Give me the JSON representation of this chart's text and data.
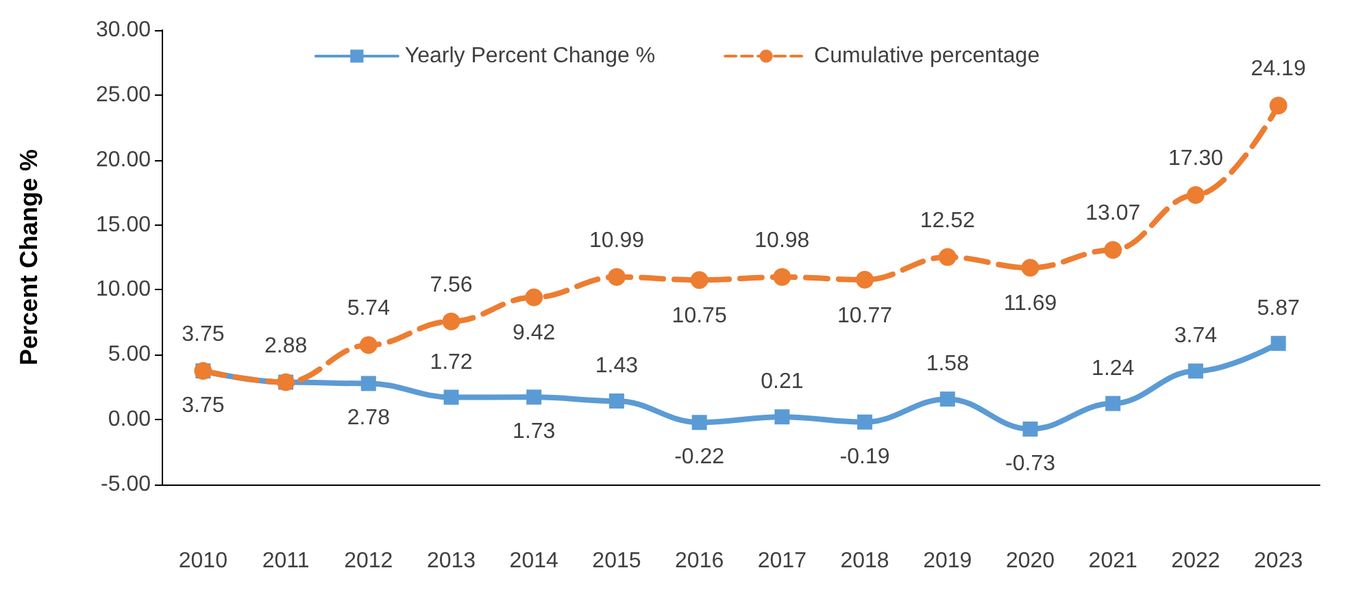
{
  "chart_data": {
    "type": "line",
    "ylabel": "Percent Change %",
    "categories": [
      "2010",
      "2011",
      "2012",
      "2013",
      "2014",
      "2015",
      "2016",
      "2017",
      "2018",
      "2019",
      "2020",
      "2021",
      "2022",
      "2023"
    ],
    "series": [
      {
        "name": "Yearly Percent Change %",
        "color": "#5b9bd5",
        "marker": "square",
        "line_style": "solid",
        "values": [
          3.75,
          2.88,
          2.78,
          1.72,
          1.73,
          1.43,
          -0.22,
          0.21,
          -0.19,
          1.58,
          -0.73,
          1.24,
          3.74,
          5.87
        ],
        "value_labels": [
          "3.75",
          null,
          "2.78",
          "1.72",
          "1.73",
          "1.43",
          "-0.22",
          "0.21",
          "-0.19",
          "1.58",
          "-0.73",
          "1.24",
          "3.74",
          "5.87"
        ]
      },
      {
        "name": "Cumulative percentage",
        "color": "#ed7d31",
        "marker": "circle",
        "line_style": "dashed",
        "values": [
          3.75,
          2.88,
          5.74,
          7.56,
          9.42,
          10.99,
          10.75,
          10.98,
          10.77,
          12.52,
          11.69,
          13.07,
          17.3,
          24.19
        ],
        "value_labels": [
          "3.75",
          "2.88",
          "5.74",
          "7.56",
          "9.42",
          "10.99",
          "10.75",
          "10.98",
          "10.77",
          "12.52",
          "11.69",
          "13.07",
          "17.30",
          "24.19"
        ]
      }
    ],
    "ylim": [
      -5,
      30
    ],
    "yticks": [
      {
        "value": -5,
        "label": "-5.00"
      },
      {
        "value": 0,
        "label": "0.00"
      },
      {
        "value": 5,
        "label": "5.00"
      },
      {
        "value": 10,
        "label": "10.00"
      },
      {
        "value": 15,
        "label": "15.00"
      },
      {
        "value": 20,
        "label": "20.00"
      },
      {
        "value": 25,
        "label": "25.00"
      },
      {
        "value": 30,
        "label": "30.00"
      }
    ],
    "grid": false,
    "legend": "top"
  }
}
